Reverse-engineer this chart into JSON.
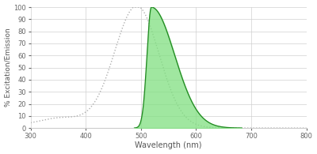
{
  "xlim": [
    300,
    800
  ],
  "ylim": [
    0,
    100
  ],
  "xlabel": "Wavelength (nm)",
  "ylabel": "% Excitation/Emission",
  "xticks": [
    300,
    400,
    500,
    600,
    700,
    800
  ],
  "yticks": [
    0,
    10,
    20,
    30,
    40,
    50,
    60,
    70,
    80,
    90,
    100
  ],
  "bg_color": "#ffffff",
  "grid_color": "#d0d0d0",
  "excitation_color": "#b0b0b0",
  "emission_fill_color": "#80e080",
  "emission_line_color": "#228822",
  "emission_peak": 519,
  "emission_start": 488,
  "excitation_peak": 493,
  "axis_label_fontsize": 7,
  "tick_fontsize": 6,
  "ylabel_fontsize": 6.5
}
